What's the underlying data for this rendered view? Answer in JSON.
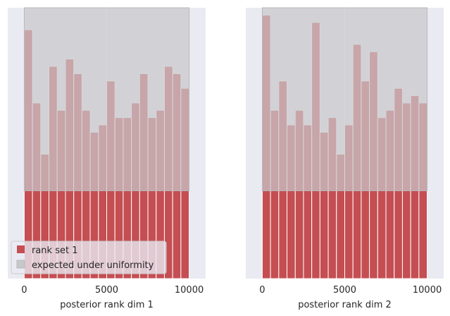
{
  "chart_data": [
    {
      "type": "bar",
      "xlabel": "posterior rank dim 1",
      "ylabel": "",
      "xlim": [
        -1000,
        11000
      ],
      "ylim": [
        0,
        37
      ],
      "xticks": [
        0,
        5000,
        10000
      ],
      "xtick_labels": [
        "0",
        "5000",
        "10000"
      ],
      "grid": true,
      "legend_position": "lower-left",
      "bin_edges": [
        0,
        500,
        1000,
        1500,
        2000,
        2500,
        3000,
        3500,
        4000,
        4500,
        5000,
        5500,
        6000,
        6500,
        7000,
        7500,
        8000,
        8500,
        9000,
        9500,
        10000
      ],
      "series": [
        {
          "name": "rank set 1",
          "color": "#c44e52",
          "values": [
            34,
            24,
            17,
            29,
            23,
            30,
            28,
            23,
            20,
            21,
            27,
            22,
            22,
            24,
            28,
            22,
            23,
            29,
            28,
            26
          ]
        }
      ],
      "uniform_band": {
        "name": "expected under uniformity",
        "color": "#c8c8cb",
        "low": 12,
        "high": 37
      }
    },
    {
      "type": "bar",
      "xlabel": "posterior rank dim 2",
      "ylabel": "",
      "xlim": [
        -1000,
        11000
      ],
      "ylim": [
        0,
        37
      ],
      "xticks": [
        0,
        5000,
        10000
      ],
      "xtick_labels": [
        "0",
        "5000",
        "10000"
      ],
      "grid": true,
      "bin_edges": [
        0,
        500,
        1000,
        1500,
        2000,
        2500,
        3000,
        3500,
        4000,
        4500,
        5000,
        5500,
        6000,
        6500,
        7000,
        7500,
        8000,
        8500,
        9000,
        9500,
        10000
      ],
      "series": [
        {
          "name": "rank set 1",
          "color": "#c44e52",
          "values": [
            36,
            23,
            27,
            21,
            23,
            21,
            35,
            20,
            22,
            17,
            21,
            32,
            27,
            31,
            22,
            23,
            26,
            24,
            25,
            24
          ]
        }
      ],
      "uniform_band": {
        "name": "expected under uniformity",
        "color": "#c8c8cb",
        "low": 12,
        "high": 37
      }
    }
  ],
  "legend": {
    "items": [
      {
        "label": "rank set 1",
        "color": "#c44e52"
      },
      {
        "label": "expected under uniformity",
        "color": "#c8c8cb"
      }
    ]
  },
  "colors": {
    "axes_background": "#eaeaf2",
    "grid": "#ffffff",
    "bar_edge": "#ffffff",
    "band_edge": "#b8b8bc"
  }
}
